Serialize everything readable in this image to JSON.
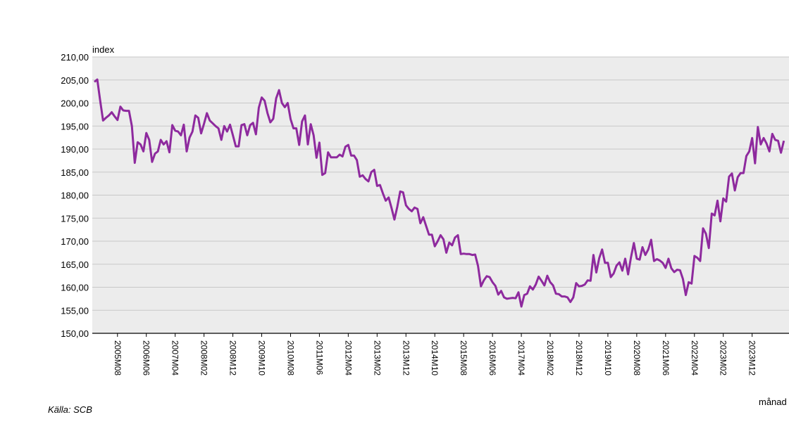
{
  "source": "Källa: SCB",
  "chart_data": {
    "type": "line",
    "ylabel": "index",
    "xlabel": "månad",
    "ylim": [
      150,
      210
    ],
    "yticks": [
      "150,00",
      "155,00",
      "160,00",
      "165,00",
      "170,00",
      "175,00",
      "180,00",
      "185,00",
      "190,00",
      "195,00",
      "200,00",
      "205,00",
      "210,00"
    ],
    "grid": true,
    "x_tick_labels": [
      "2005M08",
      "2006M06",
      "2007M04",
      "2008M02",
      "2008M12",
      "2009M10",
      "2010M08",
      "2011M06",
      "2012M04",
      "2013M02",
      "2013M12",
      "2014M10",
      "2015M08",
      "2016M06",
      "2017M04",
      "2018M02",
      "2018M12",
      "2019M10",
      "2020M08",
      "2021M06",
      "2022M04",
      "2023M02",
      "2023M12"
    ],
    "x_tick_index": [
      8,
      18,
      28,
      38,
      48,
      58,
      68,
      78,
      88,
      98,
      108,
      118,
      128,
      138,
      148,
      158,
      168,
      178,
      188,
      198,
      208,
      218,
      228
    ],
    "x_start": "2005M01",
    "x_total": 240,
    "colors": {
      "line": "#8e2a9e",
      "plot_bg": "#ececec",
      "grid": "#c8c8c8"
    },
    "series": [
      {
        "values": [
          204.6,
          205.1,
          200.5,
          196.2,
          196.8,
          197.3,
          198.0,
          197.1,
          196.3,
          199.2,
          198.4,
          198.3,
          198.3,
          195.0,
          187.0,
          191.5,
          191.0,
          189.5,
          193.5,
          192.0,
          187.2,
          189.0,
          189.5,
          192.0,
          191.0,
          191.7,
          189.3,
          195.2,
          194.0,
          193.8,
          193.0,
          195.3,
          189.5,
          192.5,
          193.8,
          197.3,
          196.8,
          193.4,
          195.5,
          197.8,
          196.2,
          195.6,
          195.0,
          194.5,
          192.0,
          195.0,
          193.8,
          195.3,
          193.0,
          190.6,
          190.6,
          195.2,
          195.4,
          193.0,
          195.2,
          195.7,
          193.2,
          199.0,
          201.2,
          200.5,
          197.8,
          195.8,
          196.6,
          201.0,
          202.8,
          200.0,
          199.1,
          200.0,
          196.5,
          194.5,
          194.5,
          190.9,
          196.0,
          197.3,
          191.0,
          195.4,
          193.0,
          188.1,
          191.4,
          184.4,
          184.8,
          189.3,
          188.2,
          188.2,
          188.2,
          188.8,
          188.4,
          190.5,
          190.9,
          188.6,
          188.6,
          187.6,
          184.0,
          184.3,
          183.5,
          183.0,
          185.0,
          185.5,
          182.0,
          182.2,
          180.4,
          178.8,
          179.5,
          177.2,
          174.7,
          177.5,
          180.8,
          180.6,
          177.8,
          177.0,
          176.5,
          177.3,
          177.0,
          173.9,
          175.2,
          173.3,
          171.4,
          171.4,
          168.9,
          170.0,
          171.3,
          170.4,
          167.5,
          169.7,
          169.1,
          170.8,
          171.3,
          167.2,
          167.3,
          167.2,
          167.2,
          167.0,
          167.1,
          164.6,
          160.2,
          161.5,
          162.4,
          162.2,
          161.1,
          160.3,
          158.4,
          159.2,
          157.8,
          157.5,
          157.6,
          157.7,
          157.6,
          158.9,
          155.8,
          158.3,
          158.6,
          160.2,
          159.5,
          160.6,
          162.3,
          161.4,
          160.4,
          162.5,
          161.1,
          160.4,
          158.6,
          158.5,
          158.0,
          158.0,
          157.8,
          156.8,
          157.8,
          160.9,
          160.2,
          160.3,
          160.6,
          161.5,
          161.4,
          167.0,
          163.2,
          166.3,
          168.2,
          165.3,
          165.3,
          162.2,
          163.0,
          164.7,
          165.4,
          163.6,
          166.2,
          162.8,
          166.5,
          169.6,
          166.2,
          166.0,
          168.7,
          167.0,
          168.2,
          170.3,
          165.7,
          166.1,
          165.8,
          165.3,
          164.2,
          166.2,
          164.1,
          163.3,
          163.8,
          163.7,
          161.8,
          158.3,
          161.1,
          160.8,
          166.8,
          166.4,
          165.7,
          172.8,
          171.6,
          168.5,
          176.0,
          175.6,
          178.8,
          174.3,
          179.3,
          178.6,
          184.0,
          184.7,
          181.0,
          183.9,
          184.8,
          184.8,
          188.5,
          189.5,
          192.4,
          186.9,
          194.8,
          191.0,
          192.4,
          191.2,
          189.5,
          193.3,
          192.0,
          191.8,
          189.2,
          191.8
        ]
      }
    ]
  }
}
